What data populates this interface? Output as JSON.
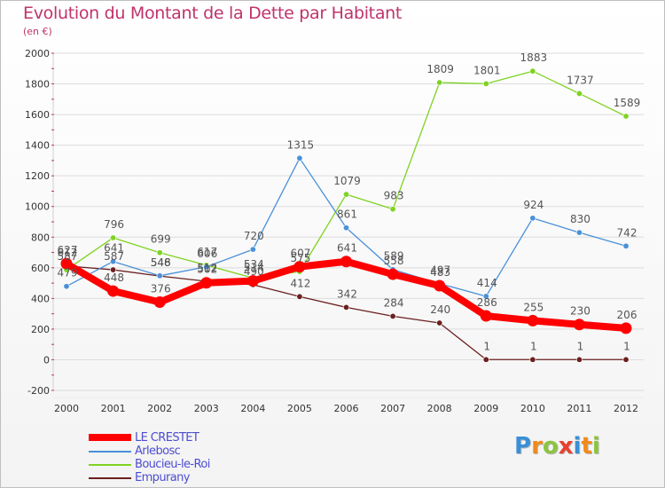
{
  "header": {
    "title": "Evolution du Montant de la Dette par Habitant",
    "subtitle": "(en €)"
  },
  "brand": {
    "letters": [
      "P",
      "r",
      "o",
      "x",
      "i",
      "t",
      "i"
    ],
    "colors": [
      "#3a8fd6",
      "#f08a1c",
      "#8bc53f",
      "#e8402f",
      "#3a8fd6",
      "#f08a1c",
      "#8bc53f"
    ]
  },
  "colors": {
    "axis_text": "#333333",
    "grid": "#dcdcdc",
    "value_label": "#555555"
  },
  "chart_data": {
    "type": "line",
    "title": "Evolution du Montant de la Dette par Habitant",
    "subtitle": "(en €)",
    "xlabel": "",
    "ylabel": "",
    "x": [
      2000,
      2001,
      2002,
      2003,
      2004,
      2005,
      2006,
      2007,
      2008,
      2009,
      2010,
      2011,
      2012
    ],
    "ylim": [
      -200,
      2000
    ],
    "yticks": [
      -200,
      0,
      200,
      400,
      600,
      800,
      1000,
      1200,
      1400,
      1600,
      1800,
      2000
    ],
    "grid": true,
    "legend_position": "bottom-left",
    "series": [
      {
        "name": "Empurany",
        "color": "#6b1f1f",
        "values": [
          612,
          587,
          546,
          512,
          490,
          412,
          342,
          284,
          240,
          1,
          1,
          1,
          1
        ],
        "labels": [
          "612",
          "587",
          "546",
          "512",
          "490",
          "412",
          "342",
          "284",
          "240",
          "1",
          "1",
          "1",
          "1"
        ]
      },
      {
        "name": "Boucieu-le-Roi",
        "color": "#7ed321",
        "values": [
          587,
          796,
          699,
          617,
          534,
          575,
          1079,
          983,
          1809,
          1801,
          1883,
          1737,
          1589
        ],
        "labels": [
          "587",
          "796",
          "699",
          "617",
          "534",
          "575",
          "1079",
          "983",
          "1809",
          "1801",
          "1883",
          "1737",
          "1589"
        ]
      },
      {
        "name": "Arlebosc",
        "color": "#4a90d9",
        "values": [
          479,
          641,
          548,
          606,
          720,
          1315,
          861,
          589,
          497,
          414,
          924,
          830,
          742
        ],
        "labels": [
          "479",
          "641",
          "548",
          "606",
          "720",
          "1315",
          "861",
          "589",
          "497",
          "414",
          "924",
          "830",
          "742"
        ]
      },
      {
        "name": "LE CRESTET",
        "color": "#ff0000",
        "values": [
          627,
          448,
          376,
          502,
          514,
          607,
          641,
          558,
          483,
          286,
          255,
          230,
          206
        ],
        "labels": [
          "627",
          "448",
          "376",
          "502",
          "514",
          "607",
          "641",
          "558",
          "483",
          "286",
          "255",
          "230",
          "206"
        ]
      }
    ]
  },
  "legend": [
    {
      "name": "LE CRESTET",
      "color": "#ff0000"
    },
    {
      "name": "Arlebosc",
      "color": "#4a90d9"
    },
    {
      "name": "Boucieu-le-Roi",
      "color": "#7ed321"
    },
    {
      "name": "Empurany",
      "color": "#6b1f1f"
    }
  ]
}
